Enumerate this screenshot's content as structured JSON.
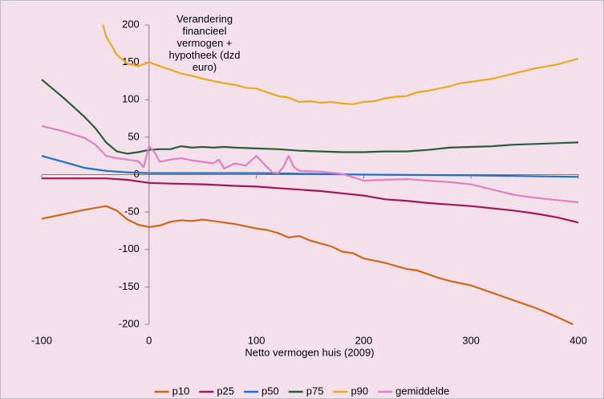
{
  "chart_data": {
    "type": "line",
    "title": "Verandering financieel vermogen + hypotheek (dzd euro)",
    "x_label": "Netto vermogen huis (2009)",
    "xlim": [
      -100,
      400
    ],
    "ylim": [
      -200,
      200
    ],
    "xticks": [
      -100,
      0,
      100,
      200,
      300,
      400
    ],
    "yticks": [
      -200,
      -150,
      -100,
      -50,
      0,
      50,
      100,
      150,
      200
    ],
    "legend": "bottom",
    "series": [
      {
        "name": "p10",
        "color": "#d0661a",
        "x": [
          -100,
          -80,
          -60,
          -40,
          -30,
          -20,
          -10,
          0,
          10,
          20,
          30,
          40,
          50,
          60,
          70,
          80,
          90,
          100,
          110,
          120,
          130,
          140,
          150,
          160,
          170,
          180,
          190,
          200,
          210,
          220,
          230,
          240,
          250,
          260,
          270,
          280,
          300,
          320,
          340,
          360,
          380,
          395
        ],
        "values": [
          -59,
          -53,
          -47,
          -42,
          -48,
          -60,
          -67,
          -70,
          -68,
          -63,
          -61,
          -62,
          -60,
          -62,
          -64,
          -66,
          -69,
          -72,
          -74,
          -78,
          -84,
          -82,
          -88,
          -92,
          -96,
          -103,
          -105,
          -112,
          -115,
          -118,
          -122,
          -126,
          -128,
          -133,
          -138,
          -142,
          -148,
          -158,
          -168,
          -178,
          -190,
          -200
        ]
      },
      {
        "name": "p25",
        "color": "#a0165a",
        "x": [
          -100,
          -80,
          -60,
          -40,
          -20,
          0,
          20,
          50,
          80,
          100,
          120,
          140,
          160,
          180,
          200,
          220,
          240,
          260,
          280,
          300,
          320,
          340,
          360,
          380,
          400
        ],
        "values": [
          -5,
          -5,
          -5,
          -5,
          -7,
          -11,
          -12,
          -13,
          -15,
          -16,
          -18,
          -20,
          -22,
          -25,
          -28,
          -33,
          -35,
          -38,
          -40,
          -42,
          -45,
          -48,
          -52,
          -57,
          -64
        ]
      },
      {
        "name": "p50",
        "color": "#1f6fc5",
        "x": [
          -100,
          -80,
          -60,
          -40,
          -20,
          0,
          100,
          200,
          300,
          400
        ],
        "values": [
          25,
          17,
          9,
          5,
          3,
          2,
          2,
          0,
          -1,
          -3
        ]
      },
      {
        "name": "p75",
        "color": "#2a5c3a",
        "x": [
          -100,
          -90,
          -80,
          -70,
          -60,
          -50,
          -40,
          -30,
          -20,
          -10,
          0,
          10,
          20,
          30,
          40,
          50,
          60,
          70,
          80,
          100,
          120,
          140,
          160,
          180,
          200,
          220,
          240,
          260,
          280,
          300,
          320,
          340,
          360,
          380,
          400
        ],
        "values": [
          127,
          115,
          103,
          90,
          77,
          62,
          43,
          31,
          28,
          30,
          33,
          34,
          34,
          38,
          36,
          37,
          36,
          37,
          36,
          35,
          34,
          32,
          31,
          30,
          30,
          31,
          31,
          33,
          36,
          37,
          38,
          40,
          41,
          42,
          43
        ]
      },
      {
        "name": "p90",
        "color": "#e8a91e",
        "x": [
          -43,
          -40,
          -30,
          -20,
          -10,
          0,
          10,
          20,
          30,
          40,
          50,
          60,
          70,
          80,
          90,
          100,
          110,
          120,
          130,
          140,
          150,
          160,
          170,
          180,
          190,
          200,
          210,
          220,
          230,
          240,
          250,
          260,
          270,
          280,
          290,
          300,
          320,
          340,
          360,
          380,
          400
        ],
        "values": [
          200,
          185,
          160,
          148,
          145,
          150,
          145,
          140,
          135,
          132,
          128,
          125,
          122,
          120,
          116,
          115,
          110,
          105,
          103,
          97,
          98,
          96,
          97,
          95,
          94,
          97,
          98,
          102,
          104,
          105,
          110,
          112,
          115,
          118,
          122,
          124,
          128,
          135,
          142,
          147,
          155
        ]
      },
      {
        "name": "gemiddelde",
        "color": "#e080c0",
        "x": [
          -100,
          -80,
          -60,
          -50,
          -40,
          -30,
          -20,
          -10,
          -5,
          0,
          5,
          10,
          20,
          30,
          40,
          50,
          60,
          65,
          70,
          80,
          90,
          100,
          110,
          115,
          120,
          125,
          130,
          135,
          140,
          160,
          180,
          200,
          220,
          240,
          260,
          280,
          300,
          320,
          340,
          360,
          380,
          400
        ],
        "values": [
          65,
          58,
          49,
          40,
          25,
          22,
          20,
          18,
          10,
          38,
          30,
          17,
          20,
          22,
          19,
          17,
          15,
          20,
          8,
          15,
          12,
          25,
          10,
          3,
          2,
          10,
          25,
          10,
          5,
          4,
          1,
          -8,
          -7,
          -6,
          -8,
          -10,
          -13,
          -20,
          -27,
          -31,
          -34,
          -37
        ]
      }
    ]
  }
}
